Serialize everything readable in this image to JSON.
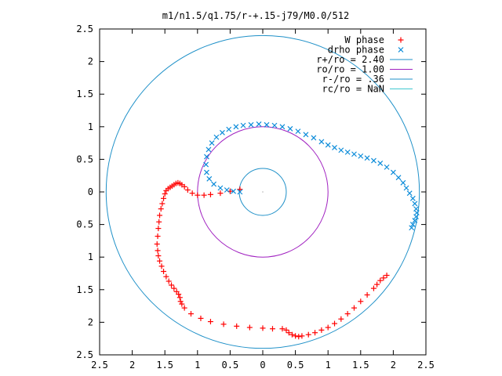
{
  "chart_data": {
    "type": "scatter",
    "title": "m1/n1.5/q1.75/r-+.15-j79/M0.0/512",
    "xlabel": "",
    "ylabel": "",
    "xlim": [
      -2.5,
      2.5
    ],
    "ylim": [
      -2.5,
      2.5
    ],
    "x_ticks": [
      -2.5,
      -2,
      -1.5,
      -1,
      -0.5,
      0,
      0.5,
      1,
      1.5,
      2,
      2.5
    ],
    "y_ticks": [
      -2.5,
      -2,
      -1.5,
      -1,
      -0.5,
      0,
      0.5,
      1,
      1.5,
      2,
      2.5
    ],
    "x_tick_labels": [
      "2.5",
      "2",
      "1.5",
      "1",
      "0.5",
      "0",
      "0.5",
      "1",
      "1.5",
      "2",
      "2.5"
    ],
    "y_tick_labels": [
      "2.5",
      "2",
      "1.5",
      "1",
      "0.5",
      "0",
      "0.5",
      "1",
      "1.5",
      "2",
      "2.5"
    ],
    "legend_position": "top-right",
    "series": [
      {
        "name": "W phase",
        "marker": "plus",
        "color": "#ff0000",
        "x": [
          -0.35,
          -0.5,
          -0.65,
          -0.8,
          -0.9,
          -1.0,
          -1.08,
          -1.15,
          -1.2,
          -1.24,
          -1.27,
          -1.3,
          -1.33,
          -1.36,
          -1.39,
          -1.42,
          -1.45,
          -1.48,
          -1.5,
          -1.52,
          -1.54,
          -1.56,
          -1.58,
          -1.59,
          -1.6,
          -1.61,
          -1.62,
          -1.61,
          -1.6,
          -1.58,
          -1.55,
          -1.52,
          -1.48,
          -1.44,
          -1.4,
          -1.36,
          -1.32,
          -1.29,
          -1.27,
          -1.26,
          -1.24,
          -1.2,
          -1.1,
          -0.95,
          -0.8,
          -0.6,
          -0.4,
          -0.2,
          0.0,
          0.15,
          0.3,
          0.36,
          0.4,
          0.45,
          0.5,
          0.55,
          0.6,
          0.7,
          0.8,
          0.9,
          1.0,
          1.1,
          1.2,
          1.3,
          1.4,
          1.5,
          1.6,
          1.7,
          1.75,
          1.8,
          1.85,
          1.9
        ],
        "y": [
          0.04,
          0.01,
          -0.02,
          -0.04,
          -0.05,
          -0.05,
          -0.02,
          0.03,
          0.08,
          0.11,
          0.13,
          0.14,
          0.13,
          0.11,
          0.09,
          0.07,
          0.05,
          0.02,
          -0.03,
          -0.1,
          -0.18,
          -0.26,
          -0.36,
          -0.46,
          -0.56,
          -0.68,
          -0.8,
          -0.9,
          -0.98,
          -1.06,
          -1.14,
          -1.22,
          -1.3,
          -1.37,
          -1.43,
          -1.48,
          -1.53,
          -1.57,
          -1.62,
          -1.68,
          -1.72,
          -1.78,
          -1.87,
          -1.94,
          -1.99,
          -2.03,
          -2.06,
          -2.08,
          -2.09,
          -2.1,
          -2.1,
          -2.12,
          -2.16,
          -2.19,
          -2.21,
          -2.22,
          -2.21,
          -2.19,
          -2.16,
          -2.12,
          -2.08,
          -2.02,
          -1.95,
          -1.87,
          -1.78,
          -1.68,
          -1.58,
          -1.48,
          -1.42,
          -1.36,
          -1.32,
          -1.28
        ]
      },
      {
        "name": "drho phase",
        "marker": "cross",
        "color": "#0a8bd9",
        "x": [
          -0.35,
          -0.45,
          -0.55,
          -0.65,
          -0.75,
          -0.82,
          -0.86,
          -0.87,
          -0.86,
          -0.83,
          -0.78,
          -0.71,
          -0.62,
          -0.52,
          -0.41,
          -0.3,
          -0.18,
          -0.06,
          0.06,
          0.18,
          0.3,
          0.42,
          0.54,
          0.66,
          0.78,
          0.9,
          1.0,
          1.1,
          1.2,
          1.3,
          1.4,
          1.5,
          1.6,
          1.7,
          1.8,
          1.9,
          2.0,
          2.08,
          2.15,
          2.2,
          2.25,
          2.3,
          2.33,
          2.35,
          2.36,
          2.35,
          2.33,
          2.3,
          2.28
        ],
        "y": [
          0.0,
          0.01,
          0.03,
          0.06,
          0.12,
          0.2,
          0.3,
          0.42,
          0.54,
          0.65,
          0.75,
          0.84,
          0.91,
          0.96,
          1.0,
          1.02,
          1.03,
          1.04,
          1.03,
          1.02,
          1.0,
          0.97,
          0.93,
          0.88,
          0.83,
          0.77,
          0.72,
          0.68,
          0.64,
          0.61,
          0.58,
          0.55,
          0.52,
          0.48,
          0.44,
          0.38,
          0.3,
          0.22,
          0.14,
          0.06,
          -0.02,
          -0.1,
          -0.18,
          -0.26,
          -0.32,
          -0.38,
          -0.44,
          -0.5,
          -0.55
        ]
      }
    ],
    "circles": [
      {
        "name": "r+/ro = 2.40",
        "radius": 2.4,
        "color": "#1e90c8"
      },
      {
        "name": "ro/ro = 1.00",
        "radius": 1.0,
        "color": "#a020c0"
      },
      {
        "name": "r-/ro = .36",
        "radius": 0.36,
        "color": "#1e90c8"
      },
      {
        "name": "rc/ro = NaN",
        "radius": null,
        "color": "#40c8d0"
      }
    ],
    "grid": false
  }
}
